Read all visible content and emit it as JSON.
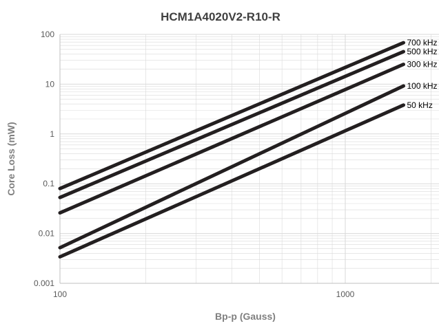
{
  "chart_data": {
    "type": "line",
    "title": "HCM1A4020V2-R10-R",
    "xlabel": "Bp-p (Gauss)",
    "ylabel": "Core Loss (mW)",
    "xscale": "log",
    "yscale": "log",
    "xlim": [
      100,
      2000
    ],
    "ylim": [
      0.001,
      100
    ],
    "xticks": [
      "100",
      "1000"
    ],
    "yticks": [
      "0.001",
      "0.01",
      "0.1",
      "1",
      "10",
      "100"
    ],
    "grid": true,
    "legend": "labels at line ends (right)",
    "colors": {
      "line": "#231f20",
      "grid": "#d9d9d9",
      "text": "#595959"
    },
    "series": [
      {
        "name": "700 kHz",
        "x": [
          100,
          1600
        ],
        "y": [
          0.08,
          68
        ]
      },
      {
        "name": "500 kHz",
        "x": [
          100,
          1600
        ],
        "y": [
          0.053,
          45
        ]
      },
      {
        "name": "300 kHz",
        "x": [
          100,
          1600
        ],
        "y": [
          0.026,
          25
        ]
      },
      {
        "name": "100 kHz",
        "x": [
          100,
          1600
        ],
        "y": [
          0.0052,
          9.2
        ]
      },
      {
        "name": "50 kHz",
        "x": [
          100,
          1600
        ],
        "y": [
          0.0034,
          3.8
        ]
      }
    ]
  }
}
